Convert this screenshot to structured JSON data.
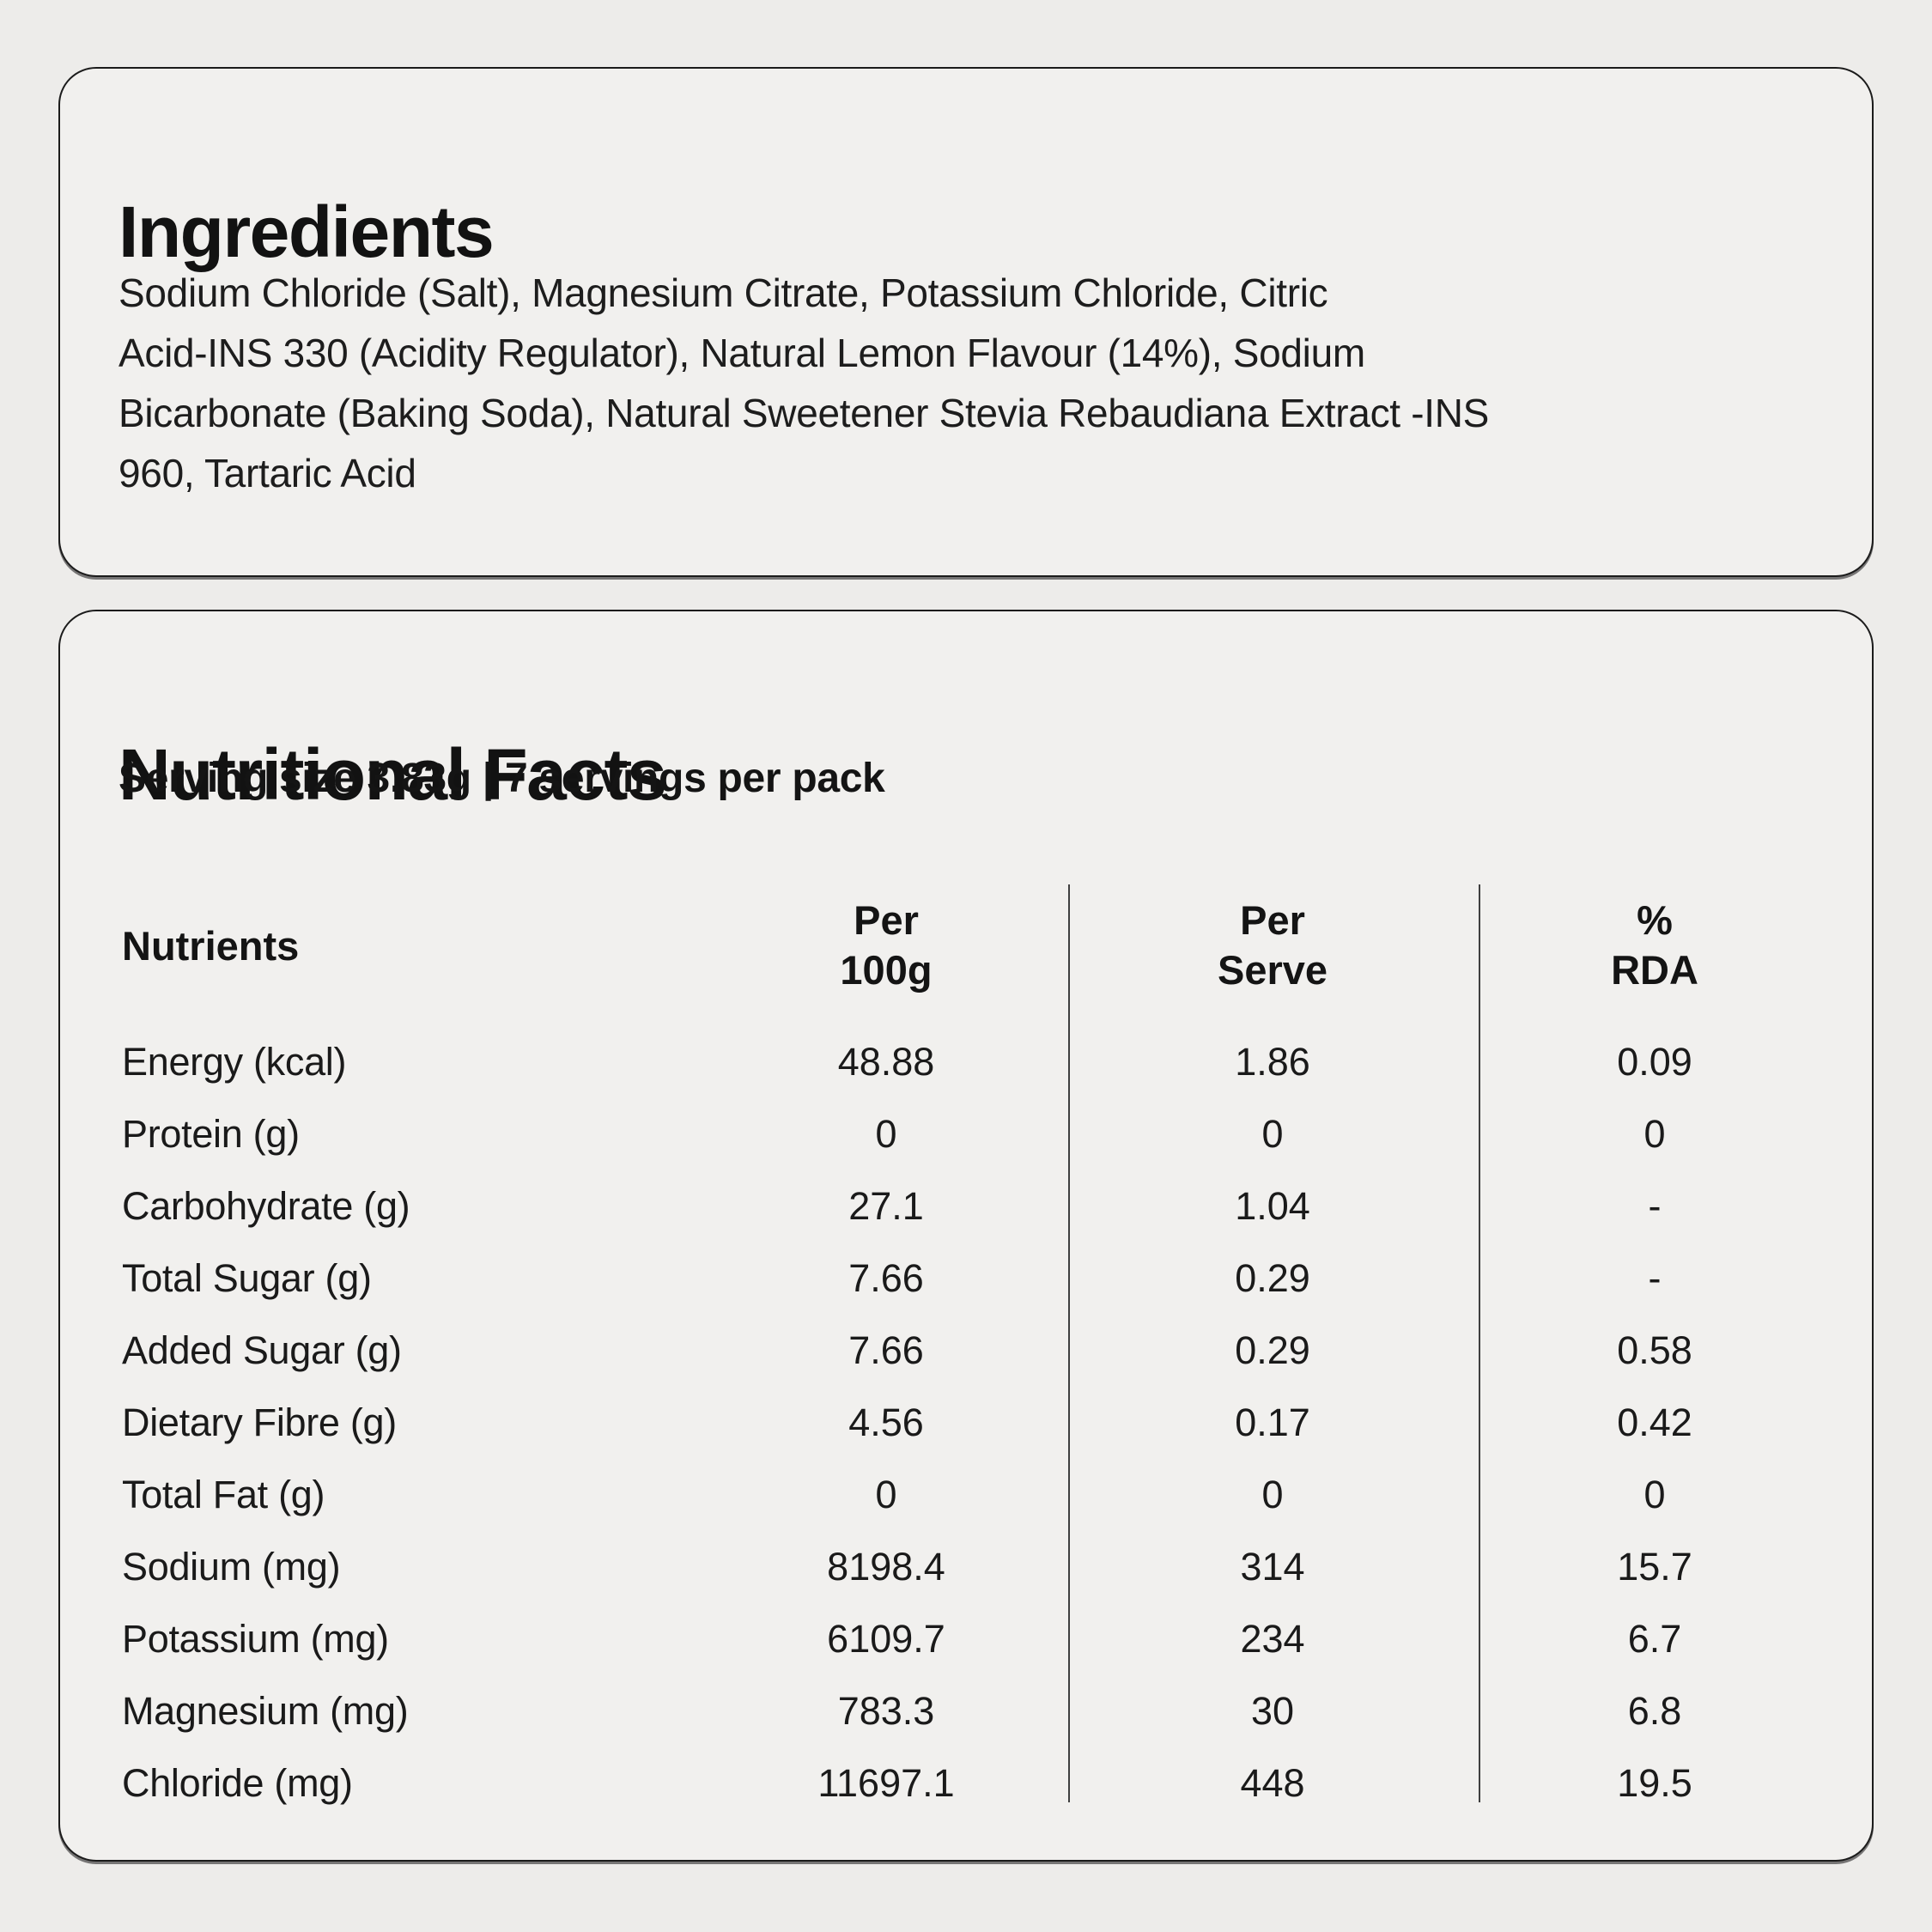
{
  "colors": {
    "page_background": "#edecea",
    "card_background": "#f1f0ee",
    "card_border": "#1b1b1b",
    "text": "#161616",
    "divider": "#3f3f3f"
  },
  "ingredients_card": {
    "title": "Ingredients",
    "lines": [
      "Sodium Chloride (Salt), Magnesium Citrate, Potassium Chloride, Citric",
      "Acid-INS 330 (Acidity Regulator), Natural Lemon Flavour (14%), Sodium",
      "Bicarbonate (Baking Soda), Natural Sweetener Stevia Rebaudiana Extract -INS",
      "960, Tartaric Acid"
    ]
  },
  "nutrition_card": {
    "title": "Nutritional Facts",
    "serving_info": "Serving size 3.83g | 7 servings per pack",
    "table": {
      "headers": {
        "nutrients": "Nutrients",
        "per_100g": "Per\n100g",
        "per_serve": "Per\nServe",
        "percent_rda": "%\nRDA"
      },
      "rows": [
        {
          "label": "Energy (kcal)",
          "per_100g": "48.88",
          "per_serve": "1.86",
          "rda": "0.09"
        },
        {
          "label": "Protein (g)",
          "per_100g": "0",
          "per_serve": "0",
          "rda": "0"
        },
        {
          "label": "Carbohydrate (g)",
          "per_100g": "27.1",
          "per_serve": "1.04",
          "rda": "-"
        },
        {
          "label": "Total Sugar (g)",
          "per_100g": "7.66",
          "per_serve": "0.29",
          "rda": "-"
        },
        {
          "label": "Added Sugar (g)",
          "per_100g": "7.66",
          "per_serve": "0.29",
          "rda": "0.58"
        },
        {
          "label": "Dietary Fibre (g)",
          "per_100g": "4.56",
          "per_serve": "0.17",
          "rda": "0.42"
        },
        {
          "label": "Total Fat (g)",
          "per_100g": "0",
          "per_serve": "0",
          "rda": "0"
        },
        {
          "label": "Sodium (mg)",
          "per_100g": "8198.4",
          "per_serve": "314",
          "rda": "15.7"
        },
        {
          "label": "Potassium (mg)",
          "per_100g": "6109.7",
          "per_serve": "234",
          "rda": "6.7"
        },
        {
          "label": "Magnesium (mg)",
          "per_100g": "783.3",
          "per_serve": "30",
          "rda": "6.8"
        },
        {
          "label": "Chloride (mg)",
          "per_100g": "11697.1",
          "per_serve": "448",
          "rda": "19.5"
        }
      ]
    }
  }
}
